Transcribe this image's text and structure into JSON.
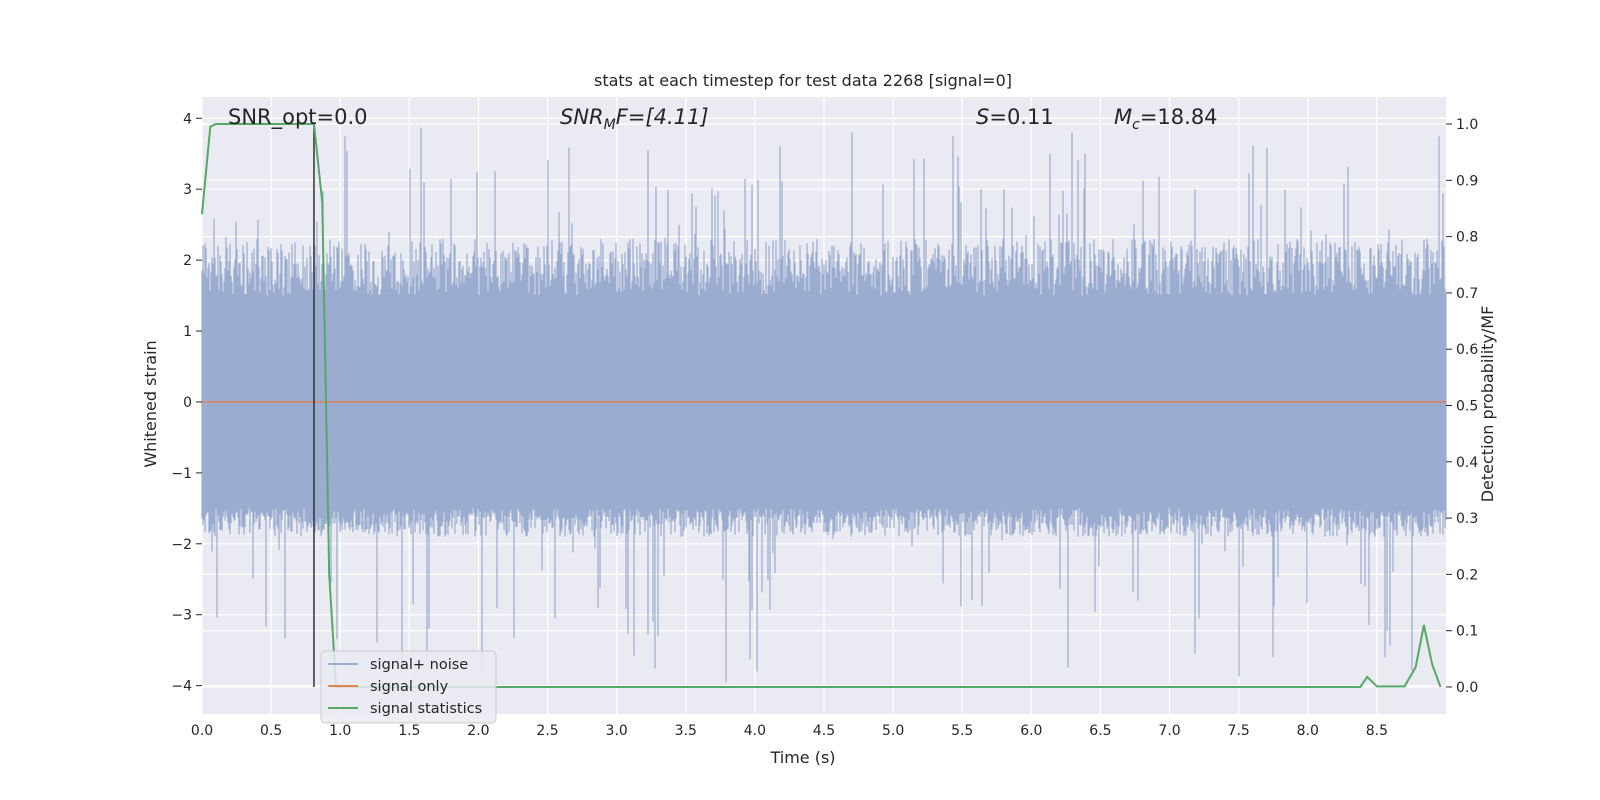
{
  "chart_data": {
    "type": "line",
    "title": "stats at each timestep for test data 2268 [signal=0]",
    "xlabel": "Time (s)",
    "ylabel": "Whitened strain",
    "y2label": "Detection probability/MF",
    "xlim": [
      0.0,
      9.0
    ],
    "ylim": [
      -4.4,
      4.3
    ],
    "y2lim": [
      -0.048,
      1.048
    ],
    "xticks": [
      "0.0",
      "0.5",
      "1.0",
      "1.5",
      "2.0",
      "2.5",
      "3.0",
      "3.5",
      "4.0",
      "4.5",
      "5.0",
      "5.5",
      "6.0",
      "6.5",
      "7.0",
      "7.5",
      "8.0",
      "8.5"
    ],
    "yticks": [
      "4",
      "3",
      "2",
      "1",
      "0",
      "−1",
      "−2",
      "−3",
      "−4"
    ],
    "y2ticks": [
      "1.0",
      "0.9",
      "0.8",
      "0.7",
      "0.6",
      "0.5",
      "0.4",
      "0.3",
      "0.2",
      "0.1",
      "0.0"
    ],
    "annotations": {
      "snr_opt": "SNR_opt=0.0",
      "snr_mf_main": "SNR",
      "snr_mf_sub": "M",
      "snr_mf_rest": "F=[4.11]",
      "s_main": "S",
      "s_rest": "=0.11",
      "mc_main": "M",
      "mc_sub": "c",
      "mc_rest": "=18.84"
    },
    "vline_x": 0.81,
    "grid": true,
    "legend_position": "lower-left",
    "colors": {
      "noise": "#9aaccf",
      "signal": "#dd8452",
      "stats": "#55a868",
      "vline": "#333333",
      "background": "#eaeaf2",
      "grid": "#ffffff"
    },
    "series": [
      {
        "name": "signal+ noise",
        "envelope": {
          "typical_high": 2.3,
          "typical_low": -1.9,
          "peak_high": 3.9,
          "peak_low": -4.0
        }
      },
      {
        "name": "signal only",
        "values_constant": 0.0
      },
      {
        "name": "signal statistics",
        "x": [
          0.0,
          0.06,
          0.1,
          0.2,
          0.4,
          0.6,
          0.81,
          0.87,
          0.92,
          0.97,
          1.5,
          3.0,
          4.0,
          5.0,
          6.0,
          7.0,
          8.0,
          8.38,
          8.43,
          8.5,
          8.7,
          8.78,
          8.84,
          8.9,
          8.96
        ],
        "y": [
          0.84,
          0.995,
          1.0,
          1.0,
          1.0,
          1.0,
          1.0,
          0.86,
          0.2,
          0.0,
          0.0,
          0.0,
          0.0,
          0.0,
          0.0,
          0.0,
          0.0,
          0.0,
          0.018,
          0.001,
          0.001,
          0.035,
          0.11,
          0.04,
          0.0
        ]
      }
    ]
  }
}
